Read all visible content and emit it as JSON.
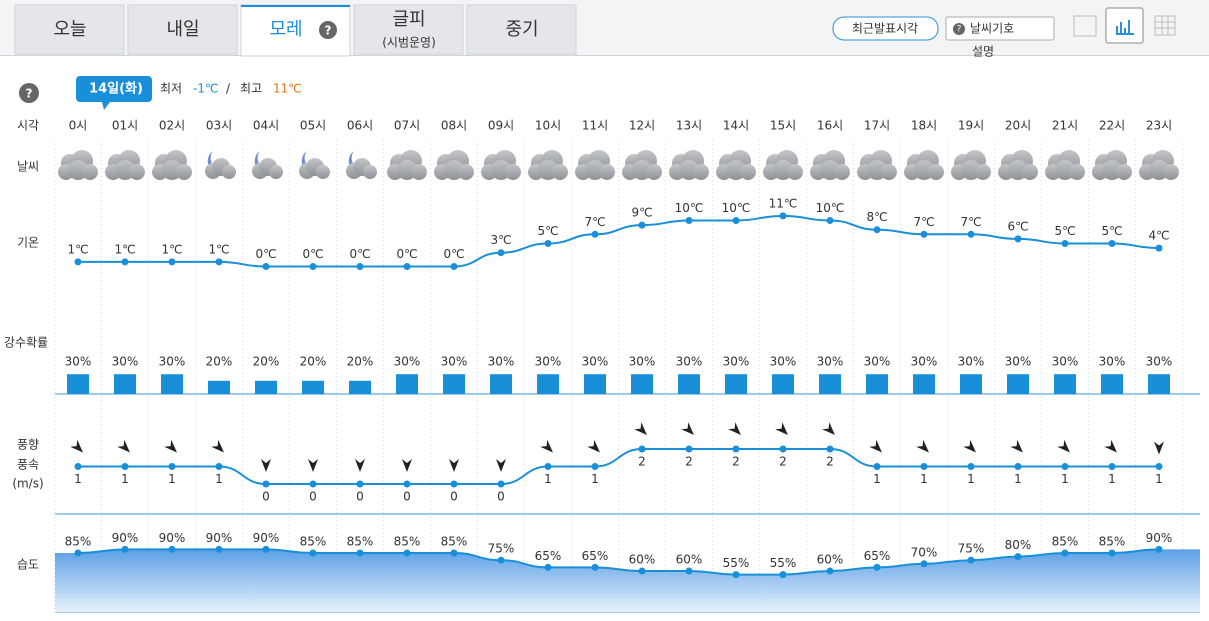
{
  "tabs": [
    {
      "label": "오늘"
    },
    {
      "label": "내일"
    },
    {
      "label": "모레"
    },
    {
      "label": "글피",
      "sub": "(시범운영)"
    },
    {
      "label": "중기"
    }
  ],
  "buttons": {
    "recent": "최근발표시각",
    "symbol": "날씨기호",
    "symbol_note": "설명"
  },
  "date": "14일(화)",
  "min_label": "최저",
  "min": "-1℃",
  "separator": "/",
  "max_label": "최고",
  "max": "11℃",
  "row_labels": {
    "time": "시각",
    "weather": "날씨",
    "temperature": "기온",
    "precip": "강수확률",
    "wind_dir": "풍향",
    "wind_speed": "풍속",
    "wind_unit": "(m/s)",
    "humidity": "습도"
  },
  "hours": [
    "0시",
    "01시",
    "02시",
    "03시",
    "04시",
    "05시",
    "06시",
    "07시",
    "08시",
    "09시",
    "10시",
    "11시",
    "12시",
    "13시",
    "14시",
    "15시",
    "16시",
    "17시",
    "18시",
    "19시",
    "20시",
    "21시",
    "22시",
    "23시"
  ],
  "temperature": {
    "values": [
      1,
      1,
      1,
      1,
      0,
      0,
      0,
      0,
      0,
      3,
      5,
      7,
      9,
      10,
      10,
      11,
      10,
      8,
      7,
      7,
      6,
      5,
      5,
      4
    ],
    "value_labels": [
      "1℃",
      "1℃",
      "1℃",
      "1℃",
      "0℃",
      "0℃",
      "0℃",
      "0℃",
      "0℃",
      "3℃",
      "5℃",
      "7℃",
      "9℃",
      "10℃",
      "10℃",
      "11℃",
      "10℃",
      "8℃",
      "7℃",
      "7℃",
      "6℃",
      "5℃",
      "5℃",
      "4℃"
    ]
  },
  "precip": {
    "values": [
      30,
      30,
      30,
      20,
      20,
      20,
      20,
      30,
      30,
      30,
      30,
      30,
      30,
      30,
      30,
      30,
      30,
      30,
      30,
      30,
      30,
      30,
      30,
      30
    ],
    "value_labels": [
      "30%",
      "30%",
      "30%",
      "20%",
      "20%",
      "20%",
      "20%",
      "30%",
      "30%",
      "30%",
      "30%",
      "30%",
      "30%",
      "30%",
      "30%",
      "30%",
      "30%",
      "30%",
      "30%",
      "30%",
      "30%",
      "30%",
      "30%",
      "30%"
    ]
  },
  "wind": {
    "values": [
      1,
      1,
      1,
      1,
      0,
      0,
      0,
      0,
      0,
      0,
      1,
      1,
      2,
      2,
      2,
      2,
      2,
      1,
      1,
      1,
      1,
      1,
      1,
      1
    ]
  },
  "humidity": {
    "values": [
      85,
      90,
      90,
      90,
      90,
      85,
      85,
      85,
      85,
      75,
      65,
      65,
      60,
      60,
      55,
      55,
      60,
      65,
      70,
      75,
      80,
      85,
      85,
      90
    ],
    "value_labels": [
      "85%",
      "90%",
      "90%",
      "90%",
      "90%",
      "85%",
      "85%",
      "85%",
      "85%",
      "75%",
      "65%",
      "65%",
      "60%",
      "60%",
      "55%",
      "55%",
      "60%",
      "65%",
      "70%",
      "75%",
      "80%",
      "85%",
      "85%",
      "90%"
    ]
  }
}
